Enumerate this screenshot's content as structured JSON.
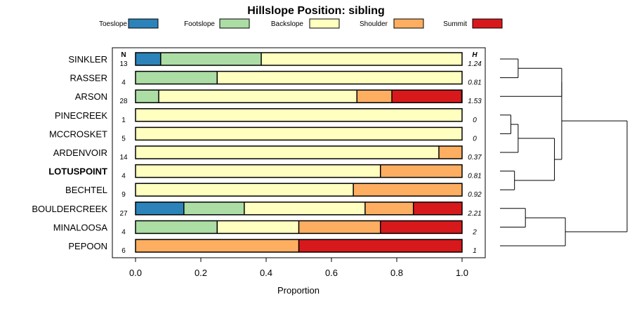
{
  "chart_data": {
    "type": "bar",
    "orientation": "horizontal",
    "stacked": true,
    "title": "Hillslope Position: sibling",
    "xlabel": "Proportion",
    "xlim": [
      0,
      1
    ],
    "xticks": [
      "0.0",
      "0.2",
      "0.4",
      "0.6",
      "0.8",
      "1.0"
    ],
    "n_header": "N",
    "h_header": "H",
    "legend_position": "top",
    "series": [
      {
        "name": "Toeslope",
        "color": "#2b83ba"
      },
      {
        "name": "Footslope",
        "color": "#abdda4"
      },
      {
        "name": "Backslope",
        "color": "#ffffbf"
      },
      {
        "name": "Shoulder",
        "color": "#fdae61"
      },
      {
        "name": "Summit",
        "color": "#d7191c"
      }
    ],
    "categories": [
      {
        "label": "SINKLER",
        "n": "13",
        "h": "1.24",
        "bold": false,
        "values": [
          0.077,
          0.308,
          0.615,
          0,
          0
        ]
      },
      {
        "label": "RASSER",
        "n": "4",
        "h": "0.81",
        "bold": false,
        "values": [
          0,
          0.25,
          0.75,
          0,
          0
        ]
      },
      {
        "label": "ARSON",
        "n": "28",
        "h": "1.53",
        "bold": false,
        "values": [
          0,
          0.071,
          0.607,
          0.107,
          0.214
        ]
      },
      {
        "label": "PINECREEK",
        "n": "1",
        "h": "0",
        "bold": false,
        "values": [
          0,
          0,
          1,
          0,
          0
        ]
      },
      {
        "label": "MCCROSKET",
        "n": "5",
        "h": "0",
        "bold": false,
        "values": [
          0,
          0,
          1,
          0,
          0
        ]
      },
      {
        "label": "ARDENVOIR",
        "n": "14",
        "h": "0.37",
        "bold": false,
        "values": [
          0,
          0,
          0.929,
          0.071,
          0
        ]
      },
      {
        "label": "LOTUSPOINT",
        "n": "4",
        "h": "0.81",
        "bold": true,
        "values": [
          0,
          0,
          0.75,
          0.25,
          0
        ]
      },
      {
        "label": "BECHTEL",
        "n": "9",
        "h": "0.92",
        "bold": false,
        "values": [
          0,
          0,
          0.667,
          0.333,
          0
        ]
      },
      {
        "label": "BOULDERCREEK",
        "n": "27",
        "h": "2.21",
        "bold": false,
        "values": [
          0.148,
          0.185,
          0.37,
          0.148,
          0.148
        ]
      },
      {
        "label": "MINALOOSA",
        "n": "4",
        "h": "2",
        "bold": false,
        "values": [
          0,
          0.25,
          0.25,
          0.25,
          0.25
        ]
      },
      {
        "label": "PEPOON",
        "n": "6",
        "h": "1",
        "bold": false,
        "values": [
          0,
          0,
          0,
          0.5,
          0.5
        ]
      }
    ],
    "dendrogram_merge_heights": [
      {
        "members": [
          0,
          1
        ],
        "height": 0.05
      },
      {
        "members": [
          0,
          1,
          2
        ],
        "height": 0.17
      },
      {
        "members": [
          3,
          4
        ],
        "height": 0.03
      },
      {
        "members": [
          3,
          4,
          5
        ],
        "height": 0.05
      },
      {
        "members": [
          6,
          7
        ],
        "height": 0.04
      },
      {
        "members": [
          3,
          4,
          5,
          6,
          7
        ],
        "height": 0.15
      },
      {
        "members": [
          0,
          1,
          2,
          3,
          4,
          5,
          6,
          7
        ],
        "height": 0.17
      },
      {
        "members": [
          8,
          9
        ],
        "height": 0.07
      },
      {
        "members": [
          8,
          9,
          10
        ],
        "height": 0.18
      },
      {
        "members": [
          0,
          1,
          2,
          3,
          4,
          5,
          6,
          7,
          8,
          9,
          10
        ],
        "height": 0.35
      }
    ]
  }
}
